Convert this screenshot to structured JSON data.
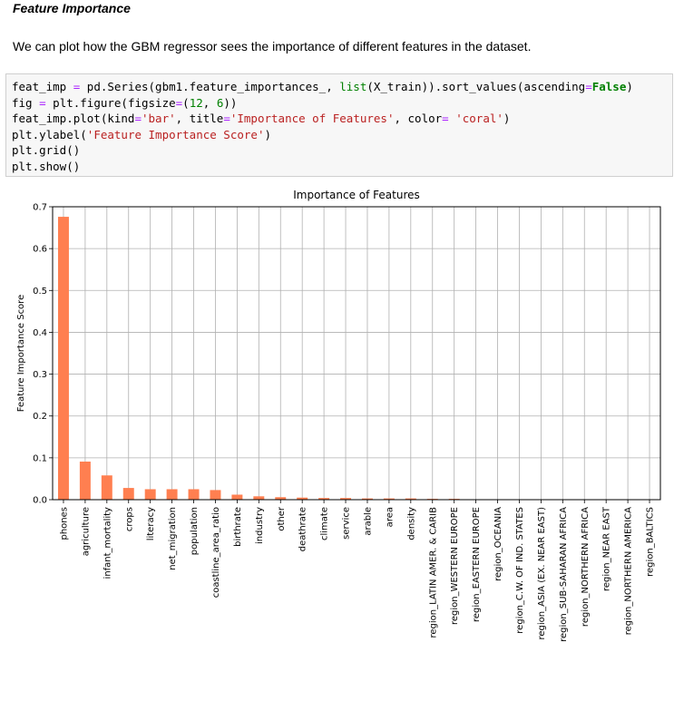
{
  "heading": "Feature Importance",
  "intro": "We can plot how the GBM regressor sees the importance of different features in the dataset.",
  "code_lines": [
    "feat_imp = pd.Series(gbm1.feature_importances_, list(X_train)).sort_values(ascending=False)",
    "fig = plt.figure(figsize=(12, 6))",
    "feat_imp.plot(kind='bar', title='Importance of Features', color= 'coral')",
    "plt.ylabel('Feature Importance Score')",
    "plt.grid()",
    "plt.show()"
  ],
  "colors": {
    "bar": "#ff7f50",
    "grid": "#b0b0b0",
    "code_bg": "#f7f7f7"
  },
  "chart_data": {
    "type": "bar",
    "title": "Importance of Features",
    "xlabel": "",
    "ylabel": "Feature Importance Score",
    "ylim": [
      0,
      0.7
    ],
    "yticks": [
      "0.0",
      "0.1",
      "0.2",
      "0.3",
      "0.4",
      "0.5",
      "0.6",
      "0.7"
    ],
    "grid": true,
    "categories": [
      "phones",
      "agriculture",
      "infant_mortality",
      "crops",
      "literacy",
      "net_migration",
      "population",
      "coastline_area_ratio",
      "birthrate",
      "industry",
      "other",
      "deathrate",
      "climate",
      "service",
      "arable",
      "area",
      "density",
      "region_LATIN AMER. & CARIB",
      "region_WESTERN EUROPE",
      "region_EASTERN EUROPE",
      "region_OCEANIA",
      "region_C.W. OF IND. STATES",
      "region_ASIA (EX. NEAR EAST)",
      "region_SUB-SAHARAN AFRICA",
      "region_NORTHERN AFRICA",
      "region_NEAR EAST",
      "region_NORTHERN AMERICA",
      "region_BALTICS"
    ],
    "values": [
      0.676,
      0.091,
      0.058,
      0.028,
      0.025,
      0.025,
      0.025,
      0.023,
      0.012,
      0.008,
      0.006,
      0.005,
      0.004,
      0.004,
      0.003,
      0.003,
      0.003,
      0.002,
      0.002,
      0.0005,
      0.0004,
      0.0003,
      0.0,
      0.0,
      0.0,
      0.0,
      0.0,
      0.0
    ]
  }
}
